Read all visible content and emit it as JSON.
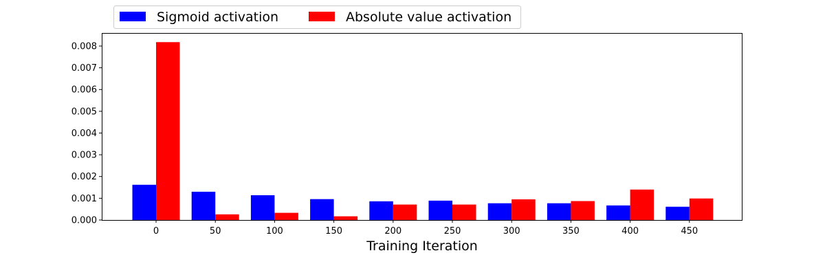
{
  "chart_data": {
    "type": "bar",
    "title": "",
    "xlabel": "Training Iteration",
    "ylabel": "",
    "categories": [
      "0",
      "50",
      "100",
      "150",
      "200",
      "250",
      "300",
      "350",
      "400",
      "450"
    ],
    "series": [
      {
        "name": "Sigmoid activation",
        "color": "#0000ff",
        "values": [
          0.00162,
          0.0013,
          0.00114,
          0.00096,
          0.00086,
          0.00089,
          0.00077,
          0.00077,
          0.00067,
          0.00061
        ]
      },
      {
        "name": "Absolute value activation",
        "color": "#ff0000",
        "values": [
          0.00818,
          0.00026,
          0.00033,
          0.00017,
          0.00071,
          0.00071,
          0.00095,
          0.00087,
          0.0014,
          0.00099
        ]
      }
    ],
    "ylim": [
      0,
      0.0086
    ],
    "yticks": [
      "0.000",
      "0.001",
      "0.002",
      "0.003",
      "0.004",
      "0.005",
      "0.006",
      "0.007",
      "0.008"
    ],
    "legend_position": "top-left, outside above plot",
    "grid": false
  }
}
